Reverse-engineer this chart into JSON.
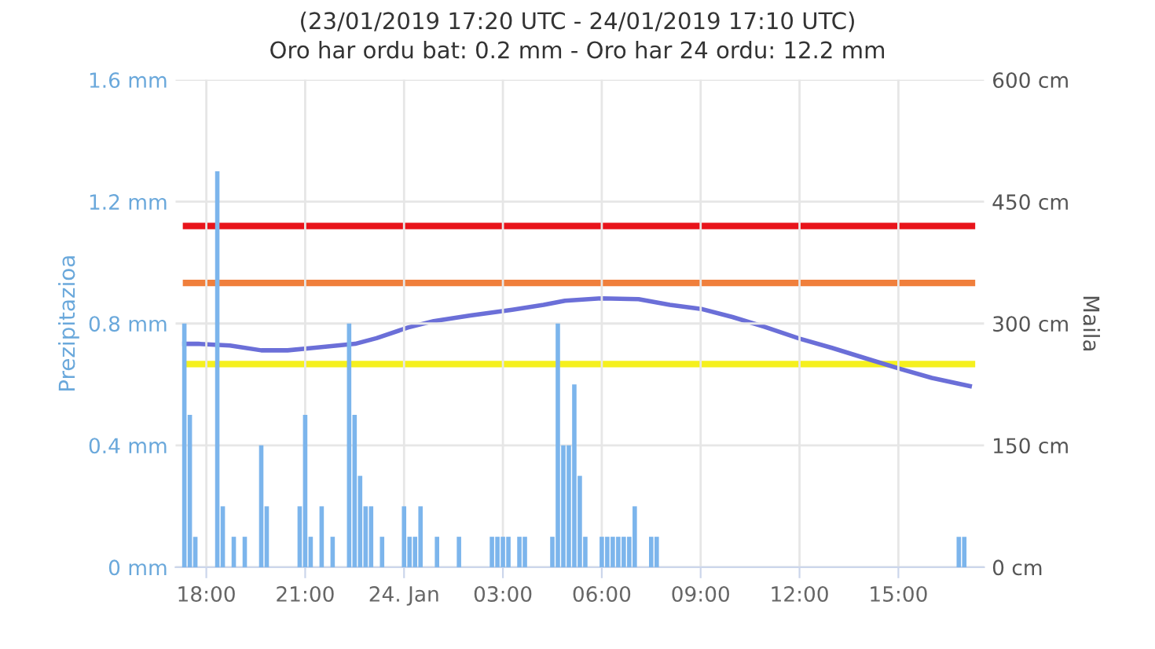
{
  "chart_data": {
    "type": "bar",
    "title": "(23/01/2019 17:20 UTC - 24/01/2019 17:10 UTC)",
    "subtitle": "Oro har ordu bat: 0.2 mm - Oro har 24 ordu: 12.2 mm",
    "ylabel": "Prezipitazioa",
    "y2label": "Maila",
    "xlim": [
      "2019-01-23T17:04",
      "2019-01-24T17:36"
    ],
    "xticks": [
      {
        "value": "2019-01-23T18:00",
        "label": "18:00"
      },
      {
        "value": "2019-01-23T21:00",
        "label": "21:00"
      },
      {
        "value": "2019-01-24T00:00",
        "label": "24. Jan"
      },
      {
        "value": "2019-01-24T03:00",
        "label": "03:00"
      },
      {
        "value": "2019-01-24T06:00",
        "label": "06:00"
      },
      {
        "value": "2019-01-24T09:00",
        "label": "09:00"
      },
      {
        "value": "2019-01-24T12:00",
        "label": "12:00"
      },
      {
        "value": "2019-01-24T15:00",
        "label": "15:00"
      }
    ],
    "ylim": [
      0,
      1.6
    ],
    "yticks": [
      {
        "value": 0,
        "label": "0 mm"
      },
      {
        "value": 0.4,
        "label": "0.4 mm"
      },
      {
        "value": 0.8,
        "label": "0.8 mm"
      },
      {
        "value": 1.2,
        "label": "1.2 mm"
      },
      {
        "value": 1.6,
        "label": "1.6 mm"
      }
    ],
    "y2lim": [
      0,
      600
    ],
    "y2ticks": [
      {
        "value": 0,
        "label": "0 cm"
      },
      {
        "value": 150,
        "label": "150 cm"
      },
      {
        "value": 300,
        "label": "300 cm"
      },
      {
        "value": 450,
        "label": "450 cm"
      },
      {
        "value": 600,
        "label": "600 cm"
      }
    ],
    "grid": true,
    "series": [
      {
        "color": "#7cb5ec",
        "x": [
          "2019-01-23T17:20",
          "2019-01-23T17:30",
          "2019-01-23T17:40",
          "2019-01-23T18:20",
          "2019-01-23T18:30",
          "2019-01-23T18:50",
          "2019-01-23T19:10",
          "2019-01-23T19:40",
          "2019-01-23T19:50",
          "2019-01-23T20:50",
          "2019-01-23T21:00",
          "2019-01-23T21:10",
          "2019-01-23T21:30",
          "2019-01-23T21:50",
          "2019-01-23T22:20",
          "2019-01-23T22:30",
          "2019-01-23T22:40",
          "2019-01-23T22:50",
          "2019-01-23T23:00",
          "2019-01-23T23:20",
          "2019-01-24T00:00",
          "2019-01-24T00:10",
          "2019-01-24T00:20",
          "2019-01-24T00:30",
          "2019-01-24T01:00",
          "2019-01-24T01:40",
          "2019-01-24T02:40",
          "2019-01-24T02:50",
          "2019-01-24T03:00",
          "2019-01-24T03:10",
          "2019-01-24T03:30",
          "2019-01-24T03:40",
          "2019-01-24T04:30",
          "2019-01-24T04:40",
          "2019-01-24T04:50",
          "2019-01-24T05:00",
          "2019-01-24T05:10",
          "2019-01-24T05:20",
          "2019-01-24T05:30",
          "2019-01-24T06:00",
          "2019-01-24T06:10",
          "2019-01-24T06:20",
          "2019-01-24T06:30",
          "2019-01-24T06:40",
          "2019-01-24T06:50",
          "2019-01-24T07:00",
          "2019-01-24T07:30",
          "2019-01-24T07:40",
          "2019-01-24T16:50",
          "2019-01-24T17:00"
        ],
        "values": [
          0.8,
          0.5,
          0.1,
          1.3,
          0.2,
          0.1,
          0.1,
          0.4,
          0.2,
          0.2,
          0.5,
          0.1,
          0.2,
          0.1,
          0.8,
          0.5,
          0.3,
          0.2,
          0.2,
          0.1,
          0.2,
          0.1,
          0.1,
          0.2,
          0.1,
          0.1,
          0.1,
          0.1,
          0.1,
          0.1,
          0.1,
          0.1,
          0.1,
          0.8,
          0.4,
          0.4,
          0.6,
          0.3,
          0.1,
          0.1,
          0.1,
          0.1,
          0.1,
          0.1,
          0.1,
          0.2,
          0.1,
          0.1,
          0.1,
          0.1
        ]
      },
      {
        "type": "line",
        "axis": "y2",
        "color": "#6b6fd8",
        "x": [
          "2019-01-23T17:20",
          "2019-01-23T17:45",
          "2019-01-23T18:43",
          "2019-01-23T19:40",
          "2019-01-23T20:28",
          "2019-01-23T21:15",
          "2019-01-23T22:31",
          "2019-01-23T23:10",
          "2019-01-24T00:07",
          "2019-01-24T00:54",
          "2019-01-24T02:01",
          "2019-01-24T03:17",
          "2019-01-24T04:14",
          "2019-01-24T04:53",
          "2019-01-24T06:00",
          "2019-01-24T07:07",
          "2019-01-24T08:04",
          "2019-01-24T09:01",
          "2019-01-24T09:58",
          "2019-01-24T10:56",
          "2019-01-24T12:02",
          "2019-01-24T12:59",
          "2019-01-24T14:06",
          "2019-01-24T15:04",
          "2019-01-24T16:01",
          "2019-01-24T17:10"
        ],
        "values": [
          275,
          275,
          273,
          267,
          267,
          270,
          275,
          282,
          295,
          303,
          310,
          317,
          323,
          328,
          331,
          330,
          323,
          318,
          308,
          296,
          281,
          270,
          256,
          244,
          233,
          223
        ]
      }
    ],
    "ref_lines": [
      {
        "axis": "y2",
        "value": 420,
        "color": "#e8141b"
      },
      {
        "axis": "y2",
        "value": 350,
        "color": "#f07f3c"
      },
      {
        "axis": "y2",
        "value": 250,
        "color": "#f5f01e"
      }
    ]
  }
}
